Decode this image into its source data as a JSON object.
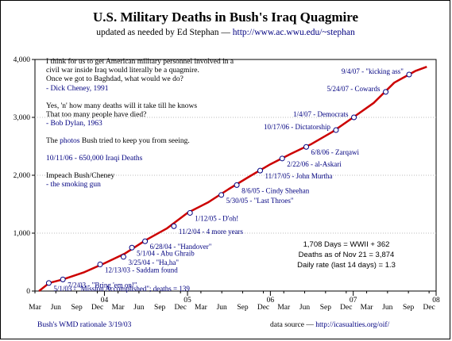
{
  "header": {
    "title": "U.S. Military Deaths in Bush's Iraq Quagmire",
    "subtitle_prefix": "updated as needed by Ed Stephan — ",
    "subtitle_link": "http://www.ac.wwu.edu/~stephan"
  },
  "quotes": {
    "cheney": [
      "I think for us to get American military personnel involved in a",
      "civil war inside Iraq would literally be a quagmire.",
      "Once we got to Baghdad, what would we do?"
    ],
    "cheney_attr": "- Dick Cheney, 1991",
    "dylan": [
      "Yes, 'n' how many deaths will it take till he knows",
      "That too many people have died?"
    ],
    "dylan_attr": "- Bob Dylan, 1963",
    "photos_pre": "The ",
    "photos_link": "photos",
    "photos_post": " Bush tried to keep you from seeing.",
    "iraqi": "10/11/06 - 650,000 Iraqi Deaths",
    "impeach": "Impeach Bush/Cheney",
    "gun": "-  the smoking gun"
  },
  "stats": {
    "line1": "1,708 Days = WWII + 362",
    "line2": "Deaths as of Nov 21 = 3,874",
    "line3": "Daily rate (last 14 days) = 1.3"
  },
  "footer": {
    "wmd": "Bush's WMD rationale 3/19/03",
    "source_label": "data source  —  ",
    "source_link": "http://icasualties.org/oif/"
  },
  "colors": {
    "line": "#cc0000",
    "link": "#000080",
    "grid": "#bbbbbb"
  },
  "chart_data": {
    "type": "line",
    "title": "U.S. Military Deaths in Bush's Iraq Quagmire",
    "xlabel": "",
    "ylabel": "",
    "xlim": [
      "2003-03-01",
      "2008-01-01"
    ],
    "ylim": [
      0,
      4000
    ],
    "grid": "horizontal dotted",
    "y_ticks": [
      {
        "value": 0,
        "label": "0"
      },
      {
        "value": 1000,
        "label": "1,000"
      },
      {
        "value": 2000,
        "label": "2,000"
      },
      {
        "value": 3000,
        "label": "3,000"
      },
      {
        "value": 4000,
        "label": "4,000"
      }
    ],
    "x_ticks": [
      {
        "date": "2003-03-01",
        "label": "Mar"
      },
      {
        "date": "2003-06-01",
        "label": "Jun"
      },
      {
        "date": "2003-09-01",
        "label": "Sep"
      },
      {
        "date": "2003-12-01",
        "label": "Dec"
      },
      {
        "date": "2004-01-01",
        "label": "04"
      },
      {
        "date": "2004-03-01",
        "label": "Mar"
      },
      {
        "date": "2004-06-01",
        "label": "Jun"
      },
      {
        "date": "2004-09-01",
        "label": "Sep"
      },
      {
        "date": "2004-12-01",
        "label": "Dec"
      },
      {
        "date": "2005-01-01",
        "label": "05"
      },
      {
        "date": "2005-03-01",
        "label": "Mar"
      },
      {
        "date": "2005-06-01",
        "label": "Jun"
      },
      {
        "date": "2005-09-01",
        "label": "Sep"
      },
      {
        "date": "2005-12-01",
        "label": "Dec"
      },
      {
        "date": "2006-01-01",
        "label": "06"
      },
      {
        "date": "2006-03-01",
        "label": "Mar"
      },
      {
        "date": "2006-06-01",
        "label": "Jun"
      },
      {
        "date": "2006-09-01",
        "label": "Sep"
      },
      {
        "date": "2006-12-01",
        "label": "Dec"
      },
      {
        "date": "2007-01-01",
        "label": "07"
      },
      {
        "date": "2007-03-01",
        "label": "Mar"
      },
      {
        "date": "2007-06-01",
        "label": "Jun"
      },
      {
        "date": "2007-09-01",
        "label": "Sep"
      },
      {
        "date": "2007-12-01",
        "label": "Dec"
      },
      {
        "date": "2008-01-01",
        "label": "08"
      }
    ],
    "series": [
      {
        "values": [
          {
            "date": "2003-03-19",
            "y": 0
          },
          {
            "date": "2003-04-20",
            "y": 100
          },
          {
            "date": "2003-05-01",
            "y": 139
          },
          {
            "date": "2003-07-01",
            "y": 200
          },
          {
            "date": "2003-10-01",
            "y": 320
          },
          {
            "date": "2004-01-01",
            "y": 480
          },
          {
            "date": "2004-04-01",
            "y": 650
          },
          {
            "date": "2004-07-01",
            "y": 880
          },
          {
            "date": "2004-10-01",
            "y": 1080
          },
          {
            "date": "2005-01-01",
            "y": 1350
          },
          {
            "date": "2005-04-01",
            "y": 1530
          },
          {
            "date": "2005-07-01",
            "y": 1760
          },
          {
            "date": "2005-10-01",
            "y": 1980
          },
          {
            "date": "2006-01-01",
            "y": 2190
          },
          {
            "date": "2006-04-01",
            "y": 2370
          },
          {
            "date": "2006-07-01",
            "y": 2540
          },
          {
            "date": "2006-10-01",
            "y": 2750
          },
          {
            "date": "2007-01-01",
            "y": 3000
          },
          {
            "date": "2007-04-01",
            "y": 3250
          },
          {
            "date": "2007-07-01",
            "y": 3600
          },
          {
            "date": "2007-10-01",
            "y": 3800
          },
          {
            "date": "2007-11-21",
            "y": 3874
          }
        ]
      }
    ],
    "annotations": [
      {
        "date": "2003-05-01",
        "y": 139,
        "label": "5/1/03 - \"Mission Accomplished\";  deaths = 139"
      },
      {
        "date": "2003-07-02",
        "y": 200,
        "label": "7/2/03 - \"Bring 'em on!\""
      },
      {
        "date": "2003-12-13",
        "y": 460,
        "label": "12/13/03 - Saddam found"
      },
      {
        "date": "2004-03-25",
        "y": 590,
        "label": "3/25/04 - \"Ha,ha\""
      },
      {
        "date": "2004-05-01",
        "y": 750,
        "label": "5/1/04 - Abu Ghraib"
      },
      {
        "date": "2004-06-28",
        "y": 860,
        "label": "6/28/04 - \"Handover\""
      },
      {
        "date": "2004-11-02",
        "y": 1120,
        "label": "11/2/04 - 4 more years"
      },
      {
        "date": "2005-01-12",
        "y": 1350,
        "label": "1/12/05 - D'oh!"
      },
      {
        "date": "2005-05-30",
        "y": 1660,
        "label": "5/30/05 - \"Last Throes\""
      },
      {
        "date": "2005-08-06",
        "y": 1830,
        "label": "8/6/05 - Cindy Sheehan"
      },
      {
        "date": "2005-11-17",
        "y": 2080,
        "label": "11/17/05 - John Murtha"
      },
      {
        "date": "2006-02-22",
        "y": 2290,
        "label": "2/22/06 - al-Askari"
      },
      {
        "date": "2006-06-08",
        "y": 2490,
        "label": "6/8/06 - Zarqawi"
      },
      {
        "date": "2006-10-17",
        "y": 2780,
        "label": "10/17/06 - Dictatorship"
      },
      {
        "date": "2007-01-04",
        "y": 3000,
        "label": "1/4/07 - Democrats"
      },
      {
        "date": "2007-05-24",
        "y": 3440,
        "label": "5/24/07 - Cowards"
      },
      {
        "date": "2007-09-04",
        "y": 3740,
        "label": "9/4/07 - \"kicking ass\""
      }
    ]
  }
}
